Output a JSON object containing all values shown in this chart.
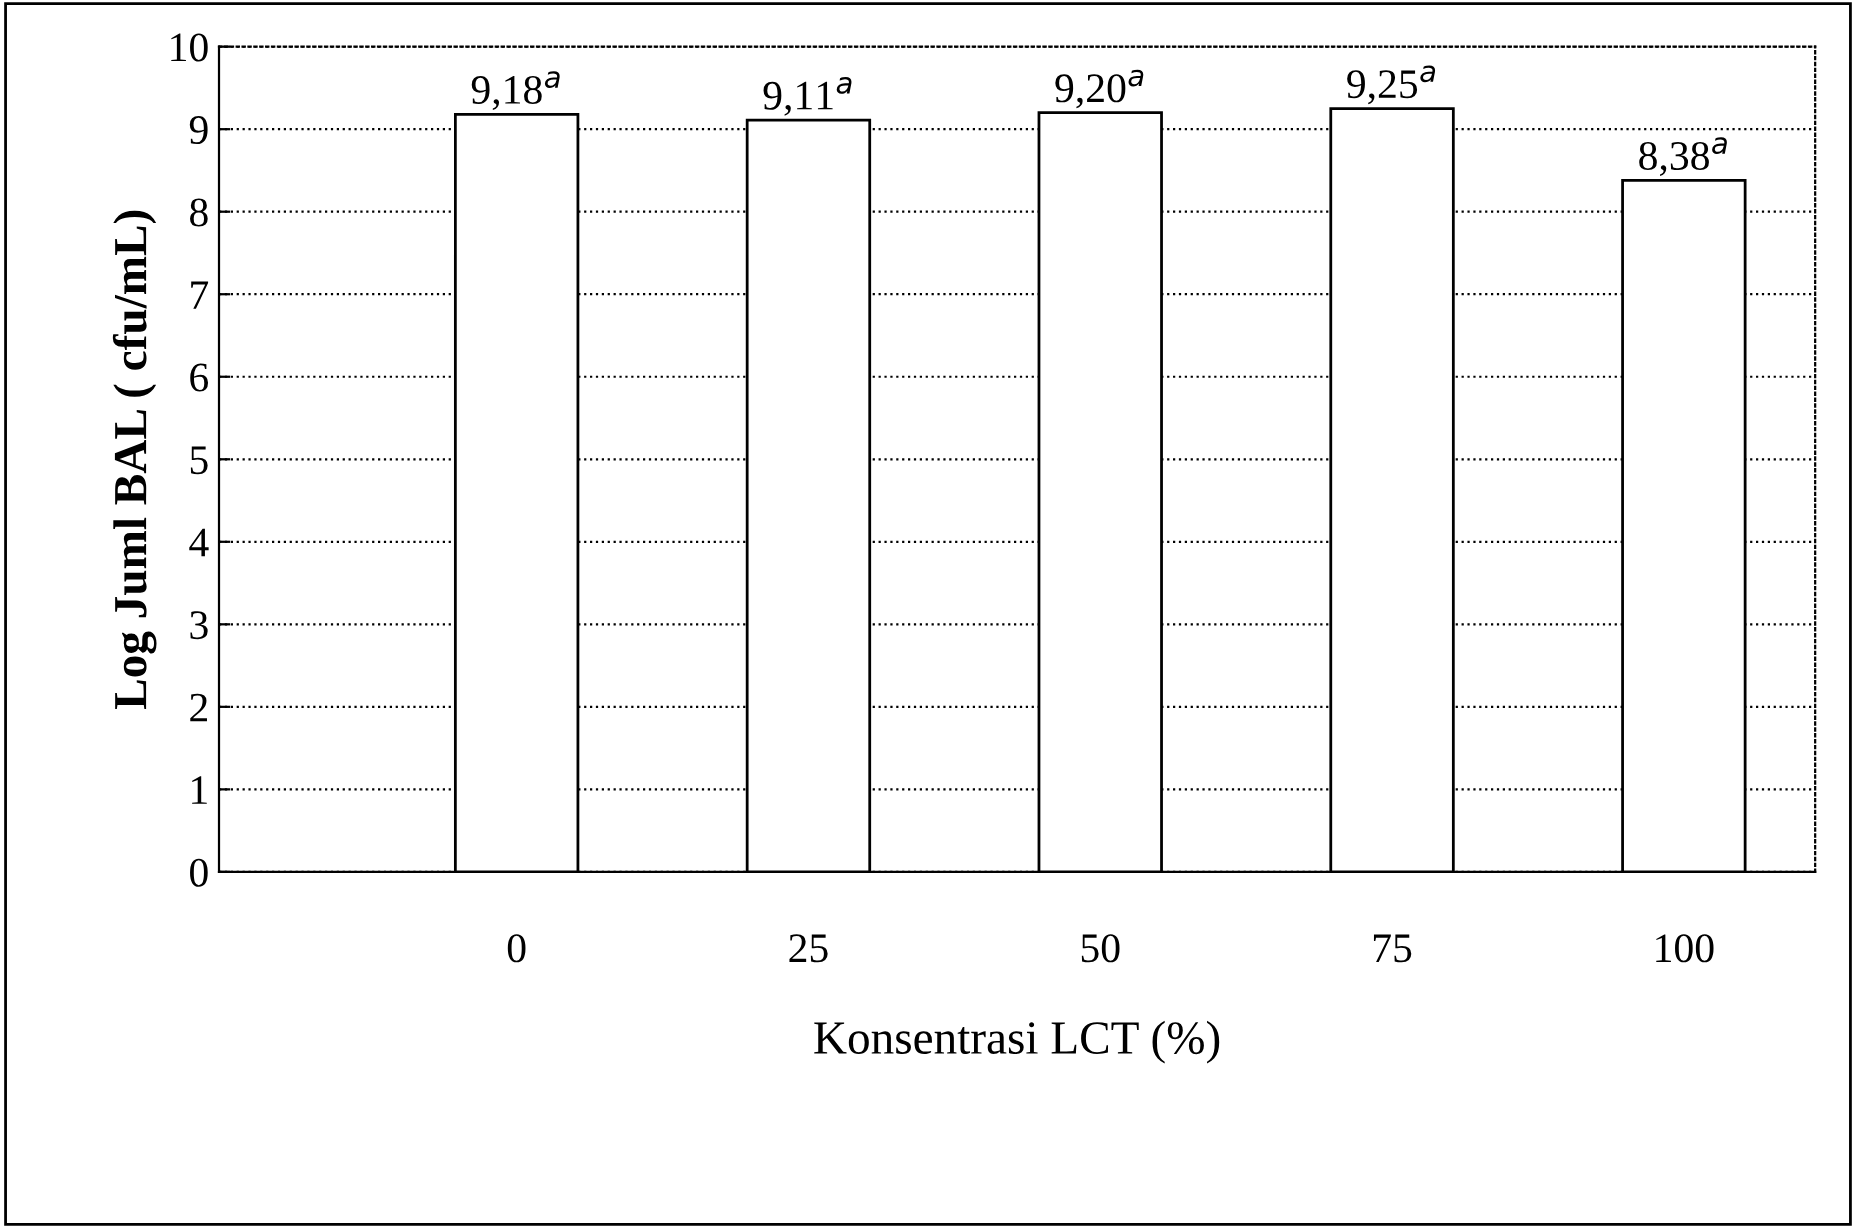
{
  "chart_data": {
    "type": "bar",
    "categories": [
      "0",
      "25",
      "50",
      "75",
      "100"
    ],
    "values": [
      9.18,
      9.11,
      9.2,
      9.25,
      8.38
    ],
    "value_labels": [
      "9,18$^{a}$",
      "9,11$^{a}$",
      "9,20$^{a}$",
      "9,25$^{a}$",
      "8,38$^{a}$"
    ],
    "color": "#ffffff",
    "xlabel": "Konsentrasi LCT (%)",
    "ylabel": "Log Juml BAL ( cfu/mL)",
    "ylim": [
      0,
      10
    ],
    "yticks": [
      0,
      1,
      2,
      3,
      4,
      5,
      6,
      7,
      8,
      9,
      10
    ],
    "grid": "y",
    "line_style": "dotted"
  }
}
